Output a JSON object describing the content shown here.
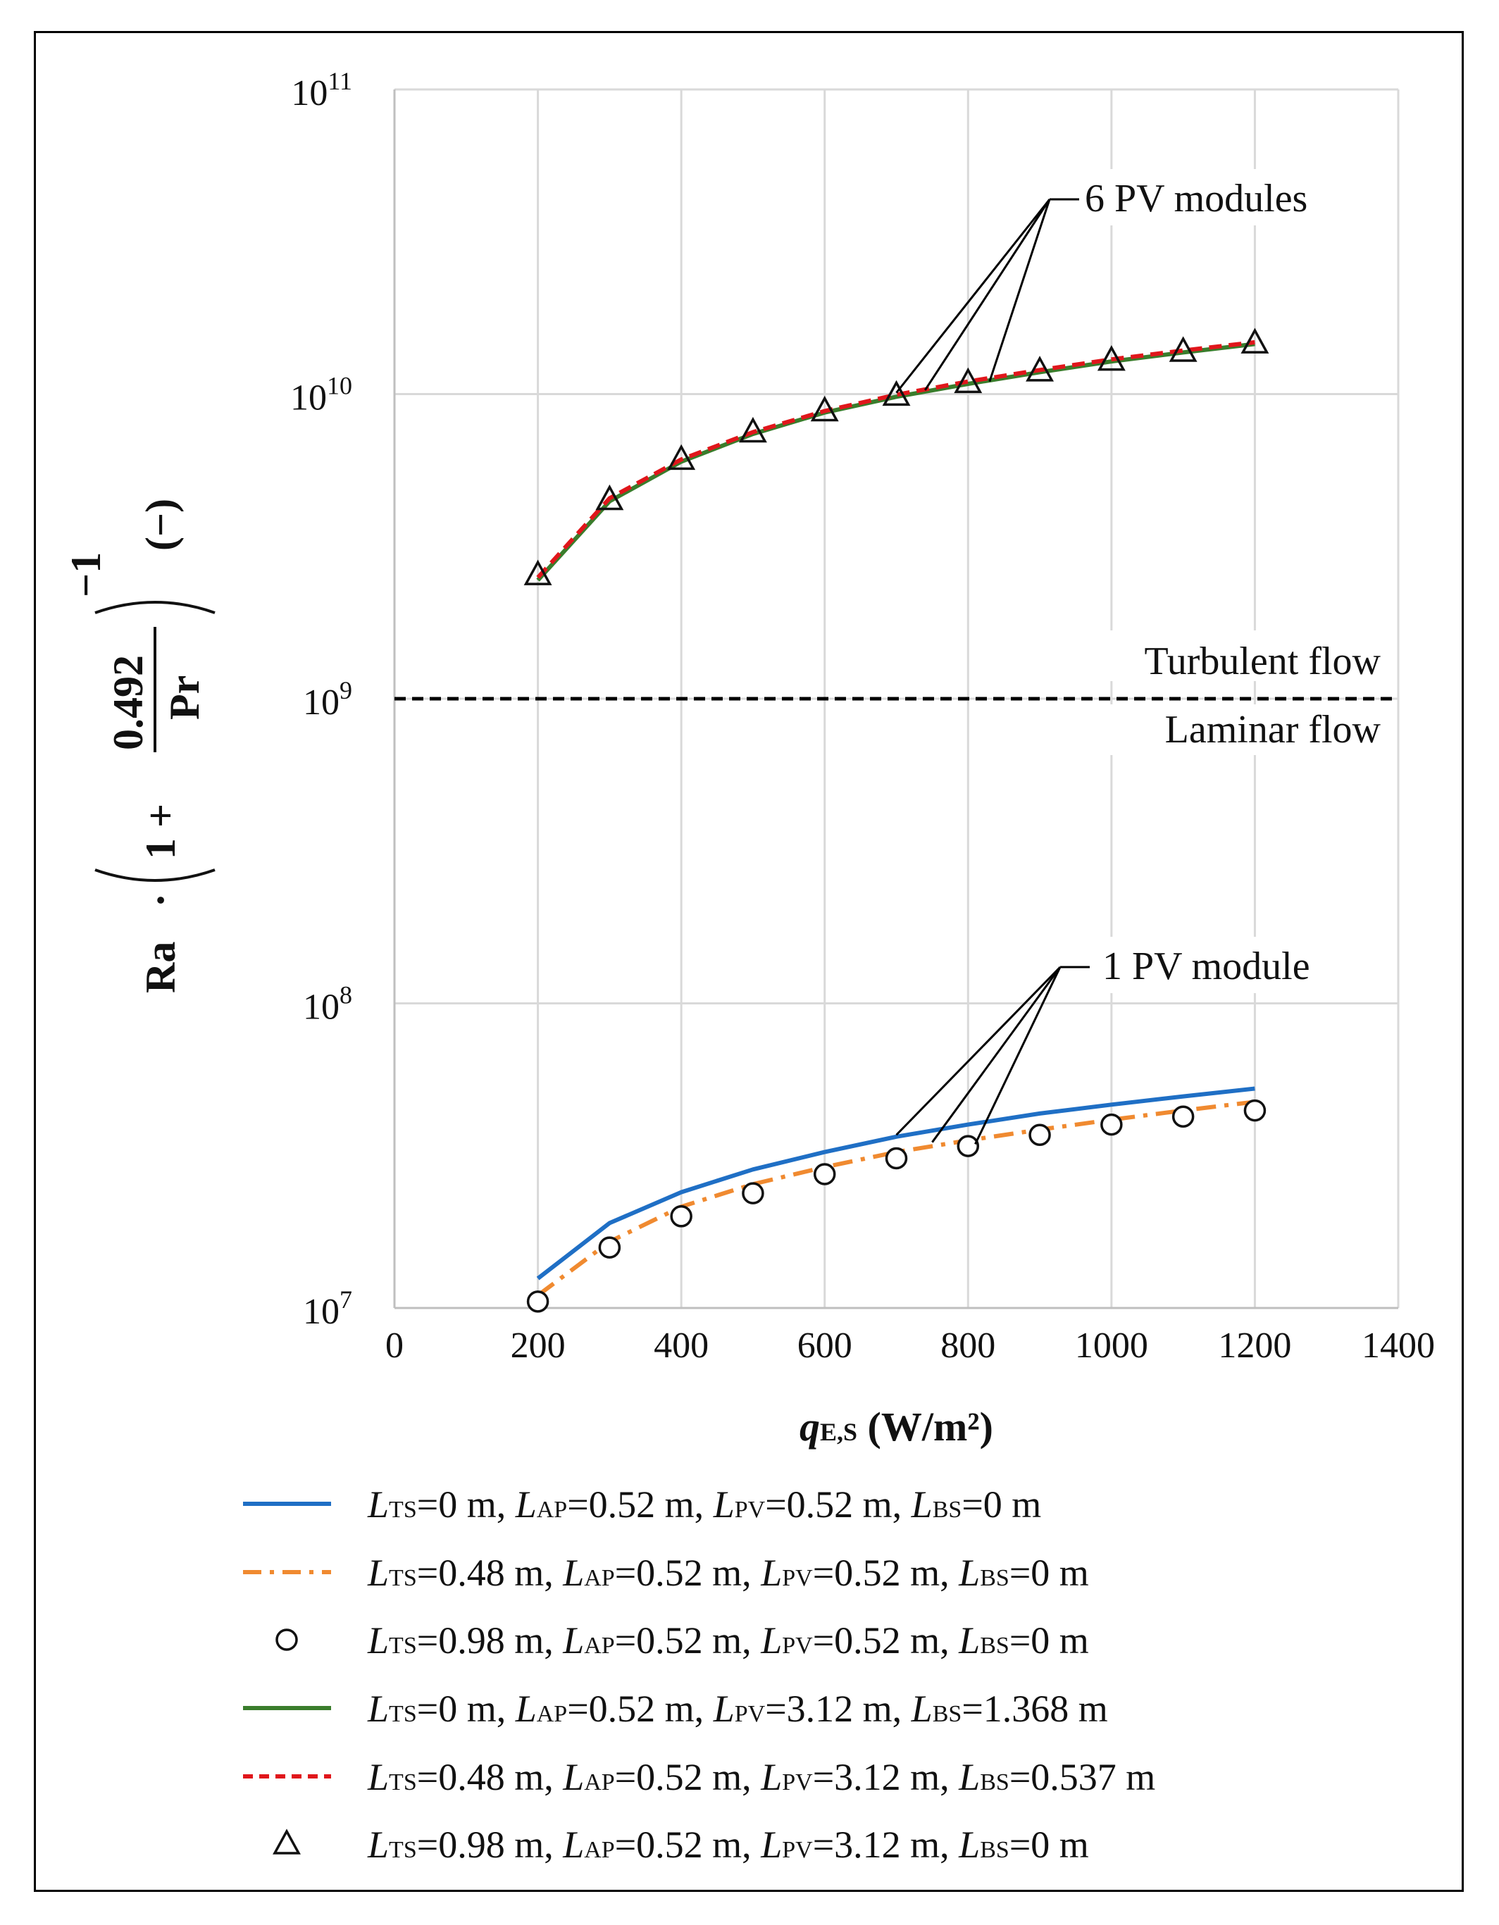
{
  "chart_data": {
    "type": "line",
    "title": "",
    "xlabel": {
      "main": "q",
      "sub": "E,S",
      "units": " (W/m²)"
    },
    "ylabel": {
      "ra": "Ra",
      "dot": "·",
      "one_plus": "1 +",
      "num": "0.492",
      "den": "Pr",
      "exp": "−1",
      "units": "(−)"
    },
    "x_ticks": [
      "0",
      "200",
      "400",
      "600",
      "800",
      "1000",
      "1200",
      "1400"
    ],
    "x_tick_values": [
      0,
      200,
      400,
      600,
      800,
      1000,
      1200,
      1400
    ],
    "xlim": [
      0,
      1400
    ],
    "y_scale": "log",
    "ylim": [
      10000000,
      100000000000
    ],
    "y_ticks": [
      {
        "base": "10",
        "exp": "7",
        "value": 10000000
      },
      {
        "base": "10",
        "exp": "8",
        "value": 100000000
      },
      {
        "base": "10",
        "exp": "9",
        "value": 1000000000
      },
      {
        "base": "10",
        "exp": "10",
        "value": 10000000000
      },
      {
        "base": "10",
        "exp": "11",
        "value": 100000000000
      }
    ],
    "grid": true,
    "threshold": {
      "value": 1000000000,
      "label_above": "Turbulent flow",
      "label_below": "Laminar flow"
    },
    "annotations": [
      {
        "text": "6 PV modules",
        "target_x": [
          700,
          740,
          830
        ],
        "target_y": [
          10100000000,
          10300000000,
          11000000000
        ]
      },
      {
        "text": "1 PV module",
        "target_x": [
          700,
          750,
          810
        ],
        "target_y": [
          37000000,
          35000000,
          34500000
        ]
      }
    ],
    "x": [
      200,
      300,
      400,
      500,
      600,
      700,
      800,
      900,
      1000,
      1100,
      1200
    ],
    "series": [
      {
        "name": "s1",
        "style": "solid",
        "color": "#1f6fc5",
        "marker": "none",
        "values": [
          12500000,
          19000000,
          24000000,
          28500000,
          32500000,
          36500000,
          40000000,
          43500000,
          46500000,
          49500000,
          52500000
        ],
        "legend": [
          [
            "L",
            "TS",
            "=0 m, "
          ],
          [
            "L",
            "AP",
            "=0.52 m, "
          ],
          [
            "L",
            "PV",
            "=0.52 m, "
          ],
          [
            "L",
            "BS",
            "=0 m"
          ]
        ]
      },
      {
        "name": "s2",
        "style": "dashdot",
        "color": "#f08a30",
        "marker": "none",
        "values": [
          11000000,
          16500000,
          21500000,
          25500000,
          29000000,
          32500000,
          35500000,
          38500000,
          41500000,
          44500000,
          47500000
        ],
        "legend": [
          [
            "L",
            "TS",
            "=0.48 m, "
          ],
          [
            "L",
            "AP",
            "=0.52 m, "
          ],
          [
            "L",
            "PV",
            "=0.52 m, "
          ],
          [
            "L",
            "BS",
            "=0 m"
          ]
        ]
      },
      {
        "name": "s3",
        "style": "none",
        "color": "#111111",
        "marker": "circle",
        "values": [
          10500000,
          15800000,
          20000000,
          23800000,
          27500000,
          31000000,
          34000000,
          37000000,
          40000000,
          42500000,
          44500000
        ],
        "legend": [
          [
            "L",
            "TS",
            "=0.98 m, "
          ],
          [
            "L",
            "AP",
            "=0.52 m, "
          ],
          [
            "L",
            "PV",
            "=0.52 m, "
          ],
          [
            "L",
            "BS",
            "=0 m"
          ]
        ]
      },
      {
        "name": "s4",
        "style": "solid",
        "color": "#3a7d2c",
        "marker": "none",
        "values": [
          2450000000,
          4450000000,
          6000000000,
          7400000000,
          8700000000,
          9800000000,
          10800000000,
          11800000000,
          12800000000,
          13700000000,
          14600000000
        ],
        "legend": [
          [
            "L",
            "TS",
            "=0 m, "
          ],
          [
            "L",
            "AP",
            "=0.52 m, "
          ],
          [
            "L",
            "PV",
            "=3.12 m, "
          ],
          [
            "L",
            "BS",
            "=1.368 m"
          ]
        ]
      },
      {
        "name": "s5",
        "style": "dashed",
        "color": "#e0161b",
        "marker": "none",
        "values": [
          2500000000,
          4550000000,
          6100000000,
          7500000000,
          8800000000,
          9950000000,
          11000000000,
          12000000000,
          13000000000,
          13900000000,
          14800000000
        ],
        "legend": [
          [
            "L",
            "TS",
            "=0.48 m, "
          ],
          [
            "L",
            "AP",
            "=0.52 m, "
          ],
          [
            "L",
            "PV",
            "=3.12 m, "
          ],
          [
            "L",
            "BS",
            "=0.537 m"
          ]
        ]
      },
      {
        "name": "s6",
        "style": "none",
        "color": "#111111",
        "marker": "triangle",
        "values": [
          2550000000,
          4500000000,
          6100000000,
          7500000000,
          8800000000,
          9900000000,
          10900000000,
          11900000000,
          12900000000,
          13800000000,
          14700000000
        ],
        "legend": [
          [
            "L",
            "TS",
            "=0.98 m, "
          ],
          [
            "L",
            "AP",
            "=0.52 m, "
          ],
          [
            "L",
            "PV",
            "=3.12 m, "
          ],
          [
            "L",
            "BS",
            "=0 m"
          ]
        ]
      }
    ]
  }
}
